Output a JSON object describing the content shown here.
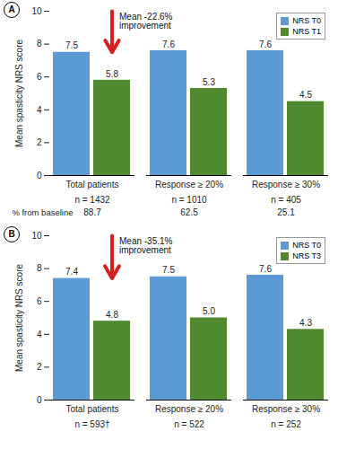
{
  "chart_data": [
    {
      "type": "bar",
      "title": "A",
      "y_label": "Mean spasticity NRS score",
      "categories": [
        "Total patients",
        "Response ≥ 20%",
        "Response ≥ 30%"
      ],
      "series": [
        {
          "name": "NRS T0",
          "color": "#5b9bd5",
          "values": [
            7.5,
            7.6,
            7.6
          ],
          "value_labels": [
            "7.5",
            "7.6",
            "7.6"
          ]
        },
        {
          "name": "NRS T1",
          "color": "#4f8a30",
          "values": [
            5.8,
            5.3,
            4.5
          ],
          "value_labels": [
            "5.8",
            "5.3",
            "4.5"
          ]
        }
      ],
      "ylim": [
        0,
        10
      ],
      "yticks": [
        0,
        2,
        4,
        6,
        8,
        10
      ],
      "data_labels": true,
      "legend": "upper right",
      "annotation": "Mean -22.6%\nimprovement",
      "n_labels": [
        "n = 1432",
        "n = 1010",
        "n = 405"
      ],
      "row_label": "% from baseline",
      "row_values": [
        88.7,
        62.5,
        25.1
      ]
    },
    {
      "type": "bar",
      "title": "B",
      "y_label": "Mean spasticity NRS score",
      "categories": [
        "Total patients",
        "Response ≥ 20%",
        "Response ≥ 30%"
      ],
      "series": [
        {
          "name": "NRS T0",
          "color": "#5b9bd5",
          "values": [
            7.4,
            7.5,
            7.6
          ],
          "value_labels": [
            "7.4",
            "7.5",
            "7.6"
          ]
        },
        {
          "name": "NRS T3",
          "color": "#4f8a30",
          "values": [
            4.8,
            5.0,
            4.3
          ],
          "value_labels": [
            "4.8",
            "5.0",
            "4.3"
          ]
        }
      ],
      "ylim": [
        0,
        10
      ],
      "yticks": [
        0,
        2,
        4,
        6,
        8,
        10
      ],
      "data_labels": true,
      "legend": "upper right",
      "annotation": "Mean -35.1%\nimprovement",
      "n_labels": [
        "n = 593†",
        "n = 522",
        "n = 252"
      ]
    }
  ]
}
